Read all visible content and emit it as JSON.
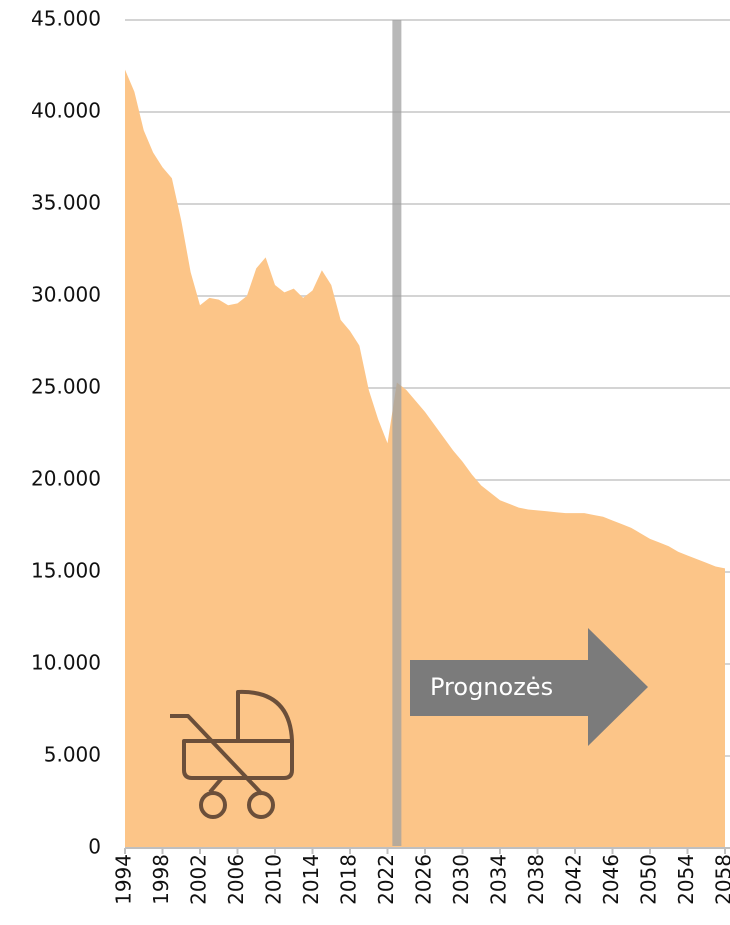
{
  "chart_data": {
    "type": "area",
    "x": [
      1994,
      1995,
      1996,
      1997,
      1998,
      1999,
      2000,
      2001,
      2002,
      2003,
      2004,
      2005,
      2006,
      2007,
      2008,
      2009,
      2010,
      2011,
      2012,
      2013,
      2014,
      2015,
      2016,
      2017,
      2018,
      2019,
      2020,
      2021,
      2022,
      2023,
      2024,
      2025,
      2026,
      2027,
      2028,
      2029,
      2030,
      2031,
      2032,
      2033,
      2034,
      2035,
      2036,
      2037,
      2038,
      2039,
      2040,
      2041,
      2042,
      2043,
      2044,
      2045,
      2046,
      2047,
      2048,
      2049,
      2050,
      2051,
      2052,
      2053,
      2054,
      2055,
      2056,
      2057,
      2058
    ],
    "values": [
      42300,
      41100,
      39000,
      37800,
      37000,
      36400,
      34100,
      31300,
      29500,
      29900,
      29800,
      29500,
      29600,
      30000,
      31500,
      32100,
      30600,
      30200,
      30400,
      29900,
      30300,
      31400,
      30600,
      28700,
      28100,
      27300,
      24900,
      23300,
      22000,
      25300,
      24900,
      24300,
      23700,
      23000,
      22300,
      21600,
      21000,
      20300,
      19700,
      19300,
      18900,
      18700,
      18500,
      18400,
      18350,
      18300,
      18250,
      18200,
      18200,
      18200,
      18100,
      18000,
      17800,
      17600,
      17400,
      17100,
      16800,
      16600,
      16400,
      16100,
      15900,
      15700,
      15500,
      15300,
      15200
    ],
    "color": "#fcc588",
    "xlim": [
      1994,
      2058
    ],
    "xticks": [
      1994,
      1998,
      2002,
      2006,
      2010,
      2014,
      2018,
      2022,
      2026,
      2030,
      2034,
      2038,
      2042,
      2046,
      2050,
      2054,
      2058
    ],
    "ylim": [
      0,
      45000
    ],
    "yticks": [
      0,
      {
        "value": 5000,
        "label": "5.000"
      },
      {
        "value": 10000,
        "label": "10.000"
      },
      {
        "value": 15000,
        "label": "15.000"
      },
      {
        "value": 20000,
        "label": "20.000"
      },
      {
        "value": 25000,
        "label": "25.000"
      },
      {
        "value": 30000,
        "label": "30.000"
      },
      {
        "value": 35000,
        "label": "35.000"
      },
      {
        "value": 40000,
        "label": "40.000"
      },
      {
        "value": 45000,
        "label": "45.000"
      }
    ],
    "grid": true,
    "forecast_start": 2023,
    "annotation": "Prognozės"
  }
}
